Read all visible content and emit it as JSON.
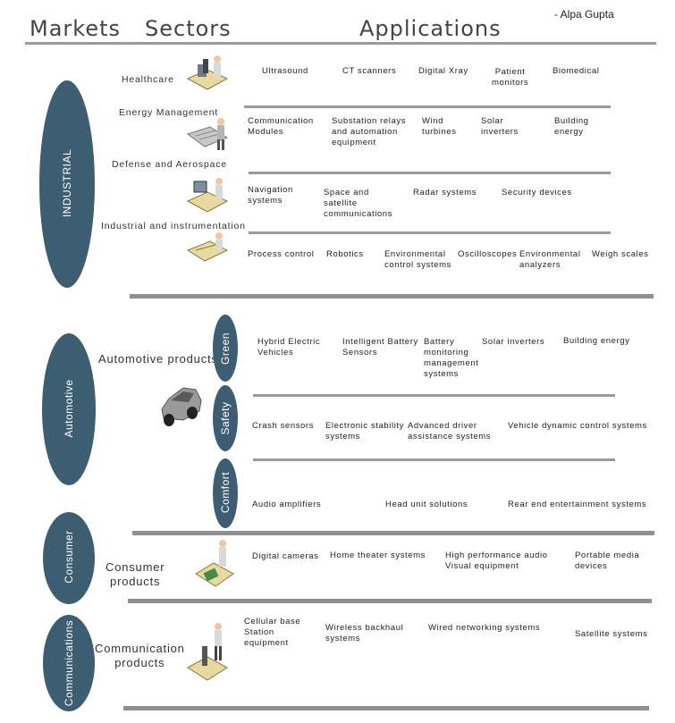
{
  "header": {
    "markets": "Markets",
    "sectors": "Sectors",
    "applications": "Applications",
    "author": "- Alpa Gupta"
  },
  "industrial": {
    "market": "INDUSTRIAL",
    "sectors": {
      "healthcare": "Healthcare",
      "energy": "Energy Management",
      "defense": "Defense and Aerospace",
      "instrumentation": "Industrial and instrumentation"
    },
    "healthcare_apps": [
      "Ultrasound",
      "CT scanners",
      "Digital Xray",
      "Patient\nmonitors",
      "Biomedical"
    ],
    "energy_apps": [
      "Communication\nModules",
      "Substation relays\nand automation\nequipment",
      "Wind\nturbines",
      "Solar\ninverters",
      "Building\nenergy"
    ],
    "defense_apps": [
      "Navigation\nsystems",
      "Space and\nsatellite\ncommunications",
      "Radar systems",
      "Security devices"
    ],
    "instrumentation_apps": [
      "Process control",
      "Robotics",
      "Environmental\ncontrol systems",
      "Oscilloscopes",
      "Environmental\nanalyzers",
      "Weigh scales"
    ]
  },
  "automotive": {
    "market": "Automotive",
    "sector": "Automotive products",
    "green": "Green",
    "safety": "Safety",
    "comfort": "Comfort",
    "green_apps": [
      "Hybrid Electric\nVehicles",
      "Intelligent Battery\nSensors",
      "Battery\nmonitoring\nmanagement\nsystems",
      "Solar inverters",
      "Building energy"
    ],
    "safety_apps": [
      "Crash sensors",
      "Electronic stability\nsystems",
      "Advanced driver\nassistance systems",
      "Vehicle dynamic control systems"
    ],
    "comfort_apps": [
      "Audio amplifiers",
      "Head unit solutions",
      "Rear end entertainment systems"
    ]
  },
  "consumer": {
    "market": "Consumer",
    "sector": "Consumer\nproducts",
    "apps": [
      "Digital cameras",
      "Home theater systems",
      "High performance audio\nVisual equipment",
      "Portable media\ndevices"
    ]
  },
  "communications": {
    "market": "Communications",
    "sector": "Communication\nproducts",
    "apps": [
      "Cellular base\nStation\nequipment",
      "Wireless backhaul\nsystems",
      "Wired networking systems",
      "Satellite systems"
    ]
  },
  "colors": {
    "market_fill": "#3d5d72",
    "divider": "#8f8f8f"
  }
}
